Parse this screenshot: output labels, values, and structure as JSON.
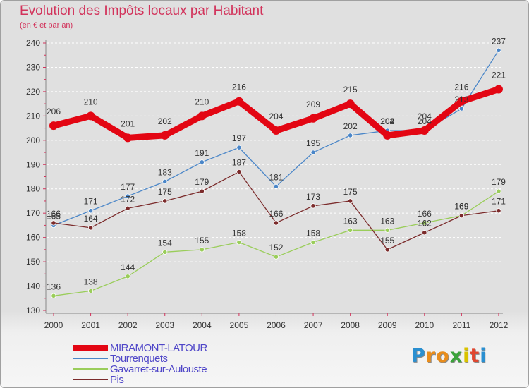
{
  "title": "Evolution des Impôts locaux par Habitant",
  "subtitle": "(en € et par an)",
  "logo_text": [
    "P",
    "r",
    "o",
    "x",
    "i",
    "t",
    "i"
  ],
  "logo_colors": [
    "#2a8fd0",
    "#e98d1c",
    "#e98d1c",
    "#3aa33a",
    "#d9c200",
    "#e0462f",
    "#2a8fd0"
  ],
  "chart_data": {
    "type": "line",
    "title": "Evolution des Impôts locaux par Habitant",
    "subtitle": "(en € et par an)",
    "xlabel": "",
    "ylabel": "",
    "ylim": [
      130,
      240
    ],
    "yticks": [
      130,
      140,
      150,
      160,
      170,
      180,
      190,
      200,
      210,
      220,
      230,
      240
    ],
    "grid": "horizontal dashed",
    "legend": "bottom-left",
    "categories": [
      "2000",
      "2001",
      "2002",
      "2003",
      "2004",
      "2005",
      "2006",
      "2007",
      "2008",
      "2009",
      "2010",
      "2011",
      "2012"
    ],
    "series": [
      {
        "name": "MIRAMONT-LATOUR",
        "color": "#e30613",
        "emphasis": true,
        "values": [
          206,
          210,
          201,
          202,
          210,
          216,
          204,
          209,
          215,
          202,
          204,
          216,
          221
        ]
      },
      {
        "name": "Tourrenquets",
        "color": "#4a86c8",
        "emphasis": false,
        "values": [
          165,
          171,
          177,
          183,
          191,
          197,
          181,
          195,
          202,
          204,
          204,
          213,
          237
        ]
      },
      {
        "name": "Gavarret-sur-Aulouste",
        "color": "#9acd5a",
        "emphasis": false,
        "values": [
          136,
          138,
          144,
          154,
          155,
          158,
          152,
          158,
          163,
          163,
          166,
          169,
          179
        ]
      },
      {
        "name": "Pis",
        "color": "#7b2b2b",
        "emphasis": false,
        "values": [
          166,
          164,
          172,
          175,
          179,
          187,
          166,
          173,
          175,
          155,
          162,
          169,
          171
        ]
      }
    ],
    "data_labels": [
      {
        "series": 0,
        "labels": [
          "206",
          "210",
          "201",
          "202",
          "210",
          "216",
          "204",
          "209",
          "215",
          "202",
          "204",
          "216",
          "221"
        ]
      },
      {
        "series": 1,
        "labels": [
          "165",
          "171",
          "177",
          "183",
          "191",
          "197",
          "181",
          "195",
          "202",
          "204",
          "204",
          "213",
          "237"
        ]
      },
      {
        "series": 2,
        "labels": [
          "136",
          "138",
          "144",
          "154",
          "155",
          "158",
          "152",
          "158",
          "163",
          "163",
          "166",
          "169",
          "179"
        ]
      },
      {
        "series": 3,
        "labels": [
          "166",
          "164",
          "172",
          "175",
          "179",
          "187",
          "166",
          "173",
          "175",
          "155",
          "162",
          "169",
          "171"
        ]
      }
    ]
  }
}
